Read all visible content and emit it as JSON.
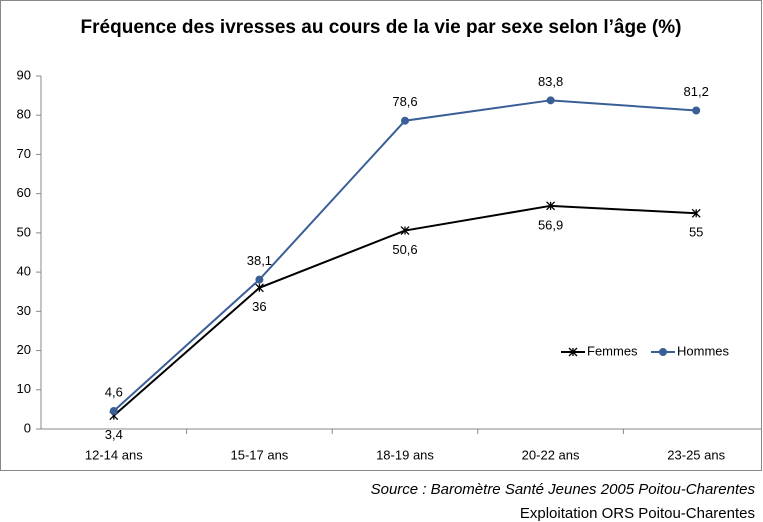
{
  "chart_data": {
    "type": "line",
    "title": "Fréquence des ivresses au cours de la vie par sexe selon l’âge (%)",
    "categories": [
      "12-14 ans",
      "15-17 ans",
      "18-19 ans",
      "20-22 ans",
      "23-25 ans"
    ],
    "series": [
      {
        "name": "Femmes",
        "color": "#000000",
        "marker": "star",
        "values": [
          3.4,
          36,
          50.6,
          56.9,
          55
        ],
        "value_labels": [
          "3,4",
          "36",
          "50,6",
          "56,9",
          "55"
        ]
      },
      {
        "name": "Hommes",
        "color": "#3a5f96",
        "marker": "circle",
        "values": [
          4.6,
          38.1,
          78.6,
          83.8,
          81.2
        ],
        "value_labels": [
          "4,6",
          "38,1",
          "78,6",
          "83,8",
          "81,2"
        ]
      }
    ],
    "ylim": [
      0,
      90
    ],
    "yticks": [
      0,
      10,
      20,
      30,
      40,
      50,
      60,
      70,
      80,
      90
    ],
    "grid": false,
    "legend": "right",
    "source": "Source : Baromètre Santé Jeunes 2005 Poitou-Charentes",
    "credit": "Exploitation ORS Poitou-Charentes"
  }
}
